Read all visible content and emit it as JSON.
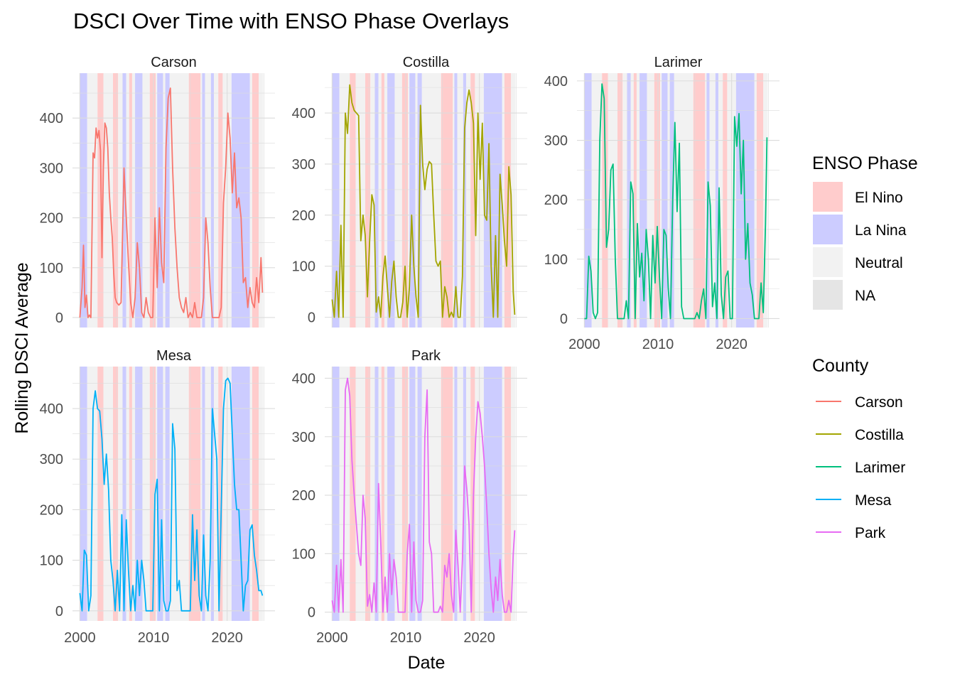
{
  "chart_data": {
    "type": "line",
    "title": "DSCI Over Time with ENSO Phase Overlays",
    "xlabel": "Date",
    "ylabel": "Rolling DSCI Average",
    "x_ticks": [
      2000,
      2010,
      2020
    ],
    "x_range": [
      2000.0,
      2025.0
    ],
    "grid": true,
    "legend_position": "right",
    "enso_legend": {
      "title": "ENSO Phase",
      "entries": [
        {
          "label": "El Nino",
          "color": "#ffcccc"
        },
        {
          "label": "La Nina",
          "color": "#ccccff"
        },
        {
          "label": "Neutral",
          "color": "#f2f2f2"
        },
        {
          "label": "NA",
          "color": "#e5e5e5"
        }
      ]
    },
    "county_legend": {
      "title": "County",
      "entries": [
        {
          "label": "Carson",
          "color": "#F8766D"
        },
        {
          "label": "Costilla",
          "color": "#A3A500"
        },
        {
          "label": "Larimer",
          "color": "#00BF7D"
        },
        {
          "label": "Mesa",
          "color": "#00B0F6"
        },
        {
          "label": "Park",
          "color": "#E76BF3"
        }
      ]
    },
    "enso_phases": [
      {
        "start": 2000.0,
        "end": 2001.0,
        "phase": "La Nina"
      },
      {
        "start": 2001.0,
        "end": 2002.4,
        "phase": "Neutral"
      },
      {
        "start": 2002.4,
        "end": 2003.2,
        "phase": "El Nino"
      },
      {
        "start": 2003.2,
        "end": 2004.5,
        "phase": "Neutral"
      },
      {
        "start": 2004.5,
        "end": 2005.2,
        "phase": "El Nino"
      },
      {
        "start": 2005.2,
        "end": 2005.8,
        "phase": "Neutral"
      },
      {
        "start": 2005.8,
        "end": 2006.3,
        "phase": "La Nina"
      },
      {
        "start": 2006.3,
        "end": 2006.7,
        "phase": "Neutral"
      },
      {
        "start": 2006.7,
        "end": 2007.1,
        "phase": "El Nino"
      },
      {
        "start": 2007.1,
        "end": 2007.5,
        "phase": "Neutral"
      },
      {
        "start": 2007.5,
        "end": 2008.5,
        "phase": "La Nina"
      },
      {
        "start": 2008.5,
        "end": 2009.5,
        "phase": "Neutral"
      },
      {
        "start": 2009.5,
        "end": 2010.3,
        "phase": "El Nino"
      },
      {
        "start": 2010.3,
        "end": 2010.5,
        "phase": "Neutral"
      },
      {
        "start": 2010.5,
        "end": 2011.3,
        "phase": "La Nina"
      },
      {
        "start": 2011.3,
        "end": 2011.6,
        "phase": "Neutral"
      },
      {
        "start": 2011.6,
        "end": 2012.2,
        "phase": "La Nina"
      },
      {
        "start": 2012.2,
        "end": 2014.8,
        "phase": "Neutral"
      },
      {
        "start": 2014.8,
        "end": 2016.4,
        "phase": "El Nino"
      },
      {
        "start": 2016.4,
        "end": 2016.6,
        "phase": "Neutral"
      },
      {
        "start": 2016.6,
        "end": 2017.0,
        "phase": "La Nina"
      },
      {
        "start": 2017.0,
        "end": 2017.8,
        "phase": "Neutral"
      },
      {
        "start": 2017.8,
        "end": 2018.2,
        "phase": "La Nina"
      },
      {
        "start": 2018.2,
        "end": 2018.8,
        "phase": "Neutral"
      },
      {
        "start": 2018.8,
        "end": 2019.4,
        "phase": "El Nino"
      },
      {
        "start": 2019.4,
        "end": 2020.6,
        "phase": "Neutral"
      },
      {
        "start": 2020.6,
        "end": 2023.1,
        "phase": "La Nina"
      },
      {
        "start": 2023.1,
        "end": 2023.4,
        "phase": "Neutral"
      },
      {
        "start": 2023.4,
        "end": 2024.3,
        "phase": "El Nino"
      },
      {
        "start": 2024.3,
        "end": 2024.9,
        "phase": "Neutral"
      }
    ],
    "panels": [
      {
        "name": "Carson",
        "color": "#F8766D",
        "ylim": [
          -20,
          490
        ],
        "y_ticks": [
          0,
          100,
          200,
          300,
          400
        ],
        "x": [
          2000.0,
          2000.3,
          2000.5,
          2000.7,
          2000.9,
          2001.1,
          2001.3,
          2001.5,
          2001.8,
          2002.0,
          2002.2,
          2002.4,
          2002.6,
          2002.8,
          2003.0,
          2003.2,
          2003.4,
          2003.6,
          2003.8,
          2004.0,
          2004.2,
          2004.4,
          2004.6,
          2004.8,
          2005.0,
          2005.3,
          2005.6,
          2006.0,
          2006.3,
          2006.6,
          2006.9,
          2007.2,
          2007.5,
          2007.8,
          2008.1,
          2008.4,
          2008.7,
          2009.0,
          2009.3,
          2009.6,
          2009.9,
          2010.2,
          2010.5,
          2010.8,
          2011.1,
          2011.4,
          2011.7,
          2012.0,
          2012.3,
          2012.6,
          2012.9,
          2013.2,
          2013.5,
          2013.8,
          2014.1,
          2014.4,
          2014.7,
          2015.0,
          2015.3,
          2015.6,
          2015.9,
          2016.2,
          2016.5,
          2016.8,
          2017.1,
          2017.4,
          2017.7,
          2018.0,
          2018.3,
          2018.6,
          2018.9,
          2019.2,
          2019.5,
          2019.8,
          2020.1,
          2020.4,
          2020.7,
          2021.0,
          2021.3,
          2021.6,
          2021.9,
          2022.2,
          2022.5,
          2022.8,
          2023.1,
          2023.4,
          2023.7,
          2024.0,
          2024.3,
          2024.6,
          2024.8
        ],
        "y": [
          0,
          60,
          145,
          20,
          45,
          0,
          5,
          0,
          330,
          320,
          380,
          360,
          375,
          335,
          120,
          300,
          390,
          380,
          340,
          250,
          200,
          160,
          90,
          40,
          30,
          25,
          30,
          300,
          200,
          110,
          30,
          0,
          40,
          150,
          100,
          10,
          0,
          40,
          10,
          0,
          0,
          200,
          60,
          220,
          110,
          70,
          340,
          440,
          460,
          300,
          180,
          100,
          40,
          20,
          10,
          40,
          0,
          10,
          0,
          30,
          0,
          0,
          0,
          40,
          200,
          150,
          60,
          0,
          0,
          0,
          0,
          20,
          230,
          300,
          410,
          360,
          250,
          330,
          220,
          240,
          200,
          70,
          80,
          20,
          60,
          30,
          20,
          80,
          30,
          120,
          50
        ]
      },
      {
        "name": "Costilla",
        "color": "#A3A500",
        "ylim": [
          -20,
          478
        ],
        "y_ticks": [
          0,
          100,
          200,
          300,
          400
        ],
        "x": [
          2000.0,
          2000.3,
          2000.6,
          2000.9,
          2001.2,
          2001.5,
          2001.8,
          2002.1,
          2002.4,
          2002.7,
          2003.0,
          2003.3,
          2003.6,
          2003.9,
          2004.2,
          2004.5,
          2004.8,
          2005.1,
          2005.4,
          2005.7,
          2006.0,
          2006.3,
          2006.6,
          2006.9,
          2007.2,
          2007.5,
          2007.8,
          2008.1,
          2008.4,
          2008.7,
          2009.0,
          2009.3,
          2009.6,
          2009.9,
          2010.2,
          2010.5,
          2010.8,
          2011.1,
          2011.4,
          2011.7,
          2012.0,
          2012.3,
          2012.6,
          2012.9,
          2013.2,
          2013.5,
          2013.8,
          2014.1,
          2014.4,
          2014.7,
          2015.0,
          2015.3,
          2015.6,
          2015.9,
          2016.2,
          2016.5,
          2016.8,
          2017.1,
          2017.4,
          2017.7,
          2018.0,
          2018.3,
          2018.6,
          2018.9,
          2019.2,
          2019.5,
          2019.8,
          2020.1,
          2020.4,
          2020.7,
          2021.0,
          2021.3,
          2021.6,
          2021.9,
          2022.2,
          2022.5,
          2022.8,
          2023.1,
          2023.4,
          2023.7,
          2024.0,
          2024.3,
          2024.6,
          2024.8
        ],
        "y": [
          35,
          0,
          90,
          0,
          180,
          0,
          400,
          360,
          455,
          420,
          405,
          400,
          395,
          150,
          200,
          160,
          40,
          150,
          240,
          220,
          10,
          40,
          0,
          80,
          120,
          60,
          0,
          70,
          110,
          40,
          0,
          0,
          30,
          100,
          0,
          60,
          200,
          100,
          40,
          0,
          415,
          300,
          250,
          290,
          305,
          300,
          200,
          110,
          100,
          110,
          0,
          60,
          40,
          0,
          10,
          0,
          60,
          0,
          0,
          80,
          370,
          420,
          445,
          420,
          380,
          160,
          400,
          270,
          380,
          200,
          190,
          340,
          100,
          0,
          160,
          0,
          280,
          220,
          150,
          100,
          295,
          240,
          50,
          5
        ]
      },
      {
        "name": "Larimer",
        "color": "#00BF7D",
        "ylim": [
          -15,
          413
        ],
        "y_ticks": [
          0,
          100,
          200,
          300,
          400
        ],
        "x": [
          2000.0,
          2000.3,
          2000.6,
          2000.9,
          2001.2,
          2001.5,
          2001.8,
          2002.1,
          2002.4,
          2002.7,
          2003.0,
          2003.3,
          2003.6,
          2003.9,
          2004.2,
          2004.5,
          2004.8,
          2005.1,
          2005.4,
          2005.7,
          2006.0,
          2006.3,
          2006.6,
          2006.9,
          2007.2,
          2007.5,
          2007.8,
          2008.1,
          2008.4,
          2008.7,
          2009.0,
          2009.3,
          2009.6,
          2009.9,
          2010.2,
          2010.5,
          2010.8,
          2011.1,
          2011.4,
          2011.7,
          2012.0,
          2012.3,
          2012.6,
          2012.9,
          2013.2,
          2013.5,
          2013.8,
          2014.1,
          2014.4,
          2014.7,
          2015.0,
          2015.3,
          2015.6,
          2015.9,
          2016.2,
          2016.5,
          2016.8,
          2017.1,
          2017.4,
          2017.7,
          2018.0,
          2018.3,
          2018.6,
          2018.9,
          2019.2,
          2019.5,
          2019.8,
          2020.1,
          2020.4,
          2020.7,
          2021.0,
          2021.3,
          2021.6,
          2021.9,
          2022.2,
          2022.5,
          2022.8,
          2023.1,
          2023.4,
          2023.7,
          2024.0,
          2024.3,
          2024.6,
          2024.8
        ],
        "y": [
          0,
          0,
          105,
          80,
          10,
          0,
          10,
          300,
          395,
          370,
          120,
          150,
          250,
          260,
          100,
          0,
          0,
          0,
          0,
          30,
          0,
          230,
          210,
          0,
          160,
          70,
          110,
          30,
          150,
          100,
          0,
          140,
          60,
          155,
          70,
          0,
          150,
          140,
          50,
          0,
          200,
          330,
          180,
          295,
          20,
          0,
          0,
          0,
          0,
          0,
          0,
          10,
          0,
          30,
          50,
          0,
          230,
          190,
          20,
          60,
          0,
          220,
          40,
          0,
          70,
          80,
          0,
          0,
          340,
          290,
          345,
          210,
          300,
          100,
          160,
          60,
          40,
          0,
          0,
          0,
          60,
          10,
          160,
          305
        ]
      },
      {
        "name": "Mesa",
        "color": "#00B0F6",
        "ylim": [
          -20,
          483
        ],
        "y_ticks": [
          0,
          100,
          200,
          300,
          400
        ],
        "x": [
          2000.0,
          2000.3,
          2000.6,
          2000.9,
          2001.2,
          2001.5,
          2001.8,
          2002.1,
          2002.4,
          2002.7,
          2003.0,
          2003.3,
          2003.6,
          2003.9,
          2004.2,
          2004.5,
          2004.8,
          2005.1,
          2005.4,
          2005.7,
          2006.0,
          2006.3,
          2006.6,
          2006.9,
          2007.2,
          2007.5,
          2007.8,
          2008.1,
          2008.4,
          2008.7,
          2009.0,
          2009.3,
          2009.6,
          2009.9,
          2010.2,
          2010.5,
          2010.8,
          2011.1,
          2011.4,
          2011.7,
          2012.0,
          2012.3,
          2012.6,
          2012.9,
          2013.2,
          2013.5,
          2013.8,
          2014.1,
          2014.4,
          2014.7,
          2015.0,
          2015.3,
          2015.6,
          2015.9,
          2016.2,
          2016.5,
          2016.8,
          2017.1,
          2017.4,
          2017.7,
          2018.0,
          2018.3,
          2018.6,
          2018.9,
          2019.2,
          2019.5,
          2019.8,
          2020.1,
          2020.4,
          2020.7,
          2021.0,
          2021.3,
          2021.6,
          2021.9,
          2022.2,
          2022.5,
          2022.8,
          2023.1,
          2023.4,
          2023.7,
          2024.0,
          2024.3,
          2024.6,
          2024.8
        ],
        "y": [
          35,
          0,
          120,
          110,
          0,
          30,
          400,
          435,
          400,
          395,
          340,
          250,
          310,
          240,
          100,
          60,
          0,
          80,
          0,
          190,
          0,
          180,
          80,
          0,
          50,
          0,
          100,
          30,
          100,
          60,
          0,
          0,
          0,
          0,
          230,
          260,
          0,
          180,
          20,
          0,
          0,
          20,
          370,
          320,
          40,
          60,
          0,
          0,
          0,
          0,
          0,
          190,
          60,
          160,
          30,
          0,
          150,
          30,
          0,
          100,
          400,
          350,
          300,
          0,
          200,
          400,
          455,
          460,
          450,
          350,
          250,
          200,
          200,
          100,
          0,
          50,
          60,
          160,
          170,
          110,
          80,
          40,
          40,
          30
        ]
      },
      {
        "name": "Park",
        "color": "#E76BF3",
        "ylim": [
          -15,
          420
        ],
        "y_ticks": [
          0,
          100,
          200,
          300,
          400
        ],
        "x": [
          2000.0,
          2000.3,
          2000.6,
          2000.9,
          2001.2,
          2001.5,
          2001.8,
          2002.1,
          2002.4,
          2002.7,
          2003.0,
          2003.3,
          2003.6,
          2003.9,
          2004.2,
          2004.5,
          2004.8,
          2005.1,
          2005.4,
          2005.7,
          2006.0,
          2006.3,
          2006.6,
          2006.9,
          2007.2,
          2007.5,
          2007.8,
          2008.1,
          2008.4,
          2008.7,
          2009.0,
          2009.3,
          2009.6,
          2009.9,
          2010.2,
          2010.5,
          2010.8,
          2011.1,
          2011.4,
          2011.7,
          2012.0,
          2012.3,
          2012.6,
          2012.9,
          2013.2,
          2013.5,
          2013.8,
          2014.1,
          2014.4,
          2014.7,
          2015.0,
          2015.3,
          2015.6,
          2015.9,
          2016.2,
          2016.5,
          2016.8,
          2017.1,
          2017.4,
          2017.7,
          2018.0,
          2018.3,
          2018.6,
          2018.9,
          2019.2,
          2019.5,
          2019.8,
          2020.1,
          2020.4,
          2020.7,
          2021.0,
          2021.3,
          2021.6,
          2021.9,
          2022.2,
          2022.5,
          2022.8,
          2023.1,
          2023.4,
          2023.7,
          2024.0,
          2024.3,
          2024.6,
          2024.8
        ],
        "y": [
          20,
          0,
          80,
          0,
          90,
          0,
          380,
          400,
          370,
          260,
          200,
          150,
          100,
          80,
          200,
          160,
          10,
          30,
          0,
          50,
          0,
          220,
          120,
          0,
          60,
          0,
          100,
          30,
          90,
          60,
          0,
          0,
          0,
          0,
          100,
          150,
          0,
          120,
          20,
          0,
          0,
          20,
          300,
          380,
          120,
          100,
          0,
          0,
          0,
          10,
          0,
          80,
          60,
          100,
          30,
          0,
          140,
          80,
          0,
          90,
          250,
          210,
          150,
          0,
          200,
          300,
          360,
          340,
          300,
          250,
          180,
          100,
          40,
          0,
          60,
          20,
          90,
          30,
          0,
          0,
          20,
          0,
          100,
          140
        ]
      }
    ]
  }
}
